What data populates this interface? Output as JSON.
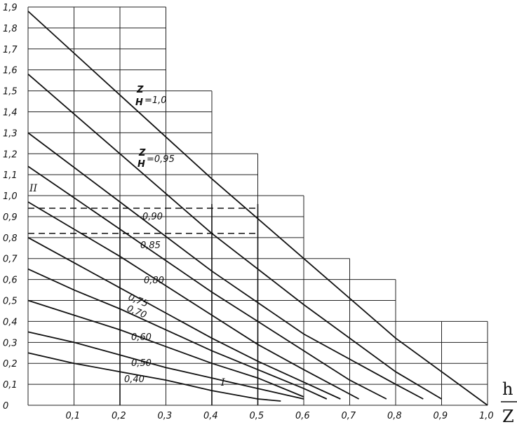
{
  "chart_data": {
    "type": "line",
    "xlabel_num": "h",
    "xlabel_den": "Z",
    "xlim": [
      0,
      1.0
    ],
    "ylim": [
      0,
      1.9
    ],
    "x_tick_labels": [
      "0,1",
      "0,2",
      "0,3",
      "0,4",
      "0,5",
      "0,6",
      "0,7",
      "0,8",
      "0,9",
      "1,0"
    ],
    "y_tick_labels": [
      "0",
      "0,1",
      "0,2",
      "0,3",
      "0,4",
      "0,5",
      "0,6",
      "0,7",
      "0,8",
      "0,9",
      "1,0",
      "1,1",
      "1,2",
      "1,3",
      "1,4",
      "1,5",
      "1,6",
      "1,7",
      "1,8",
      "1,9"
    ],
    "grid": "stepped",
    "series": [
      {
        "name": "Z/H=1,0",
        "x": [
          0,
          0.2,
          0.4,
          0.6,
          0.8,
          1.0
        ],
        "y": [
          1.88,
          1.48,
          1.08,
          0.7,
          0.32,
          0.0
        ]
      },
      {
        "name": "Z/H=0,95",
        "x": [
          0,
          0.2,
          0.4,
          0.6,
          0.8,
          0.9
        ],
        "y": [
          1.58,
          1.2,
          0.82,
          0.48,
          0.16,
          0.03
        ]
      },
      {
        "name": "0,90",
        "x": [
          0,
          0.2,
          0.4,
          0.6,
          0.8,
          0.86
        ],
        "y": [
          1.3,
          0.97,
          0.64,
          0.34,
          0.1,
          0.03
        ]
      },
      {
        "name": "0,85",
        "x": [
          0,
          0.1,
          0.2,
          0.3,
          0.4,
          0.5,
          0.6,
          0.7,
          0.78
        ],
        "y": [
          1.14,
          0.99,
          0.84,
          0.69,
          0.54,
          0.4,
          0.26,
          0.12,
          0.03
        ]
      },
      {
        "name": "0,80",
        "x": [
          0,
          0.1,
          0.2,
          0.3,
          0.4,
          0.5,
          0.6,
          0.72
        ],
        "y": [
          0.97,
          0.84,
          0.71,
          0.57,
          0.43,
          0.29,
          0.17,
          0.03
        ]
      },
      {
        "name": "0,75",
        "x": [
          0,
          0.1,
          0.2,
          0.3,
          0.4,
          0.5,
          0.6,
          0.68
        ],
        "y": [
          0.8,
          0.68,
          0.56,
          0.44,
          0.32,
          0.21,
          0.11,
          0.03
        ]
      },
      {
        "name": "0,70",
        "x": [
          0,
          0.1,
          0.2,
          0.3,
          0.4,
          0.5,
          0.6,
          0.65
        ],
        "y": [
          0.65,
          0.55,
          0.46,
          0.36,
          0.26,
          0.17,
          0.08,
          0.03
        ]
      },
      {
        "name": "0,60",
        "x": [
          0,
          0.1,
          0.2,
          0.3,
          0.4,
          0.5,
          0.6
        ],
        "y": [
          0.5,
          0.43,
          0.36,
          0.28,
          0.2,
          0.13,
          0.04
        ]
      },
      {
        "name": "0,50",
        "x": [
          0,
          0.1,
          0.2,
          0.3,
          0.4,
          0.5,
          0.6
        ],
        "y": [
          0.35,
          0.3,
          0.24,
          0.18,
          0.13,
          0.08,
          0.03
        ]
      },
      {
        "name": "0,40",
        "x": [
          0,
          0.1,
          0.2,
          0.3,
          0.4,
          0.5,
          0.55
        ],
        "y": [
          0.25,
          0.2,
          0.16,
          0.12,
          0.07,
          0.03,
          0.02
        ]
      }
    ],
    "guides": {
      "I": {
        "label": "I",
        "x": [
          0.2,
          0.4,
          0.5
        ]
      },
      "II": {
        "label": "II",
        "y": [
          0.94,
          0.82
        ]
      }
    },
    "curve_labels": [
      "Z",
      "H",
      "=1,0",
      "Z",
      "H",
      "=0,95",
      "0,90",
      "0,85",
      "0,80",
      "0,75",
      "0,70",
      "0,60",
      "0,50",
      "0,40"
    ]
  }
}
